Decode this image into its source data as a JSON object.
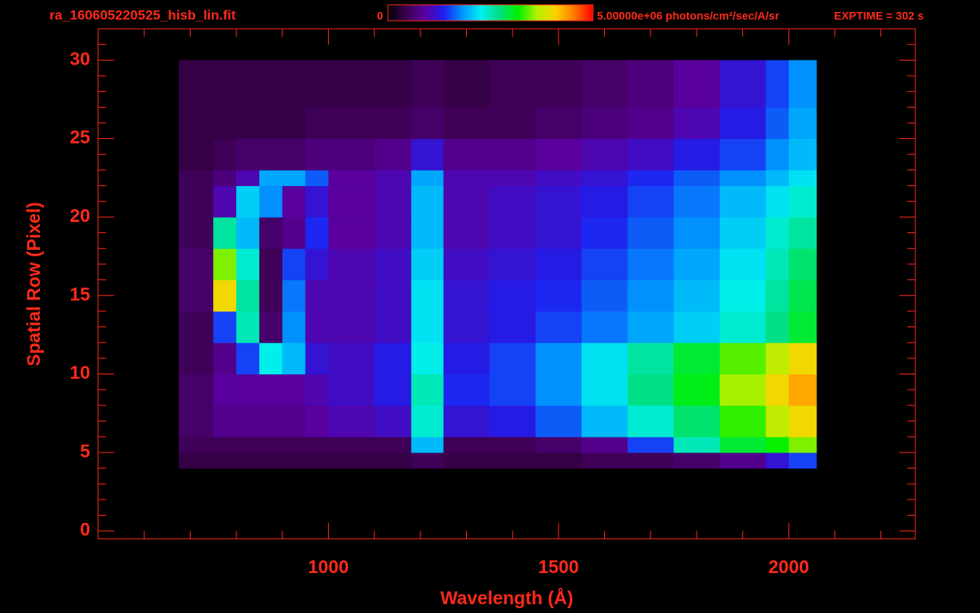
{
  "chart_data": {
    "type": "heatmap",
    "title": "ra_160605220525_hisb_lin.fit",
    "exposure": "EXPTIME = 302 s",
    "xlabel": "Wavelength (Å)",
    "ylabel": "Spatial Row (Pixel)",
    "xlim": [
      500,
      2275
    ],
    "ylim": [
      -0.5,
      32
    ],
    "xticks": [
      1000,
      1500,
      2000
    ],
    "yticks": [
      0,
      5,
      10,
      15,
      20,
      25,
      30
    ],
    "xminorticks": [
      600,
      700,
      800,
      900,
      1100,
      1200,
      1300,
      1400,
      1600,
      1700,
      1800,
      1900,
      2100,
      2200
    ],
    "yminorticks": [
      1,
      2,
      3,
      4,
      6,
      7,
      8,
      9,
      11,
      12,
      13,
      14,
      16,
      17,
      18,
      19,
      21,
      22,
      23,
      24,
      26,
      27,
      28,
      29,
      31
    ],
    "frame_color": "#ff2a1a",
    "colormap": [
      "#000000",
      "#3c0050",
      "#5a00a0",
      "#1e1ef0",
      "#0096ff",
      "#00f0f0",
      "#00e080",
      "#00f000",
      "#b4f000",
      "#ffd200",
      "#ff7800",
      "#ff0000"
    ],
    "zlim": [
      0,
      5000000
    ],
    "zticks": [
      0,
      {
        "value": 5000000,
        "label": "5.00000e+06 photons/cm²/sec/A/sr"
      }
    ],
    "x_edges": [
      675,
      750,
      800,
      850,
      900,
      950,
      1000,
      1100,
      1180,
      1250,
      1350,
      1450,
      1550,
      1650,
      1750,
      1850,
      1950,
      2000,
      2060
    ],
    "y_edges": [
      4,
      5,
      6,
      8,
      10,
      12,
      14,
      16,
      18,
      20,
      22,
      23,
      25,
      27,
      30
    ],
    "z": [
      [
        400000.0,
        400000.0,
        400000.0,
        400000.0,
        400000.0,
        400000.0,
        400000.0,
        400000.0,
        500000.0,
        400000.0,
        400000.0,
        400000.0,
        500000.0,
        500000.0,
        600000.0,
        800000.0,
        1200000.0,
        1500000.0
      ],
      [
        500000.0,
        500000.0,
        500000.0,
        500000.0,
        500000.0,
        500000.0,
        500000.0,
        500000.0,
        2000000.0,
        500000.0,
        500000.0,
        600000.0,
        800000.0,
        1500000.0,
        2500000.0,
        3000000.0,
        3200000.0,
        3500000.0
      ],
      [
        600000.0,
        800000.0,
        800000.0,
        800000.0,
        800000.0,
        900000.0,
        1000000.0,
        1100000.0,
        2400000.0,
        1200000.0,
        1300000.0,
        1600000.0,
        2000000.0,
        2400000.0,
        2800000.0,
        3300000.0,
        3700000.0,
        4000000.0
      ],
      [
        600000.0,
        900000.0,
        900000.0,
        900000.0,
        900000.0,
        1000000.0,
        1100000.0,
        1300000.0,
        2500000.0,
        1400000.0,
        1500000.0,
        1800000.0,
        2200000.0,
        2700000.0,
        3100000.0,
        3600000.0,
        4000000.0,
        4300000.0
      ],
      [
        500000.0,
        800000.0,
        1500000.0,
        2300000.0,
        2000000.0,
        1200000.0,
        1100000.0,
        1300000.0,
        2300000.0,
        1300000.0,
        1500000.0,
        1800000.0,
        2200000.0,
        2600000.0,
        3000000.0,
        3400000.0,
        3700000.0,
        4000000.0
      ],
      [
        500000.0,
        1500000.0,
        2500000.0,
        600000.0,
        1800000.0,
        1000000.0,
        1000000.0,
        1100000.0,
        2200000.0,
        1200000.0,
        1300000.0,
        1500000.0,
        1700000.0,
        1900000.0,
        2100000.0,
        2400000.0,
        2700000.0,
        3000000.0
      ],
      [
        600000.0,
        4000000.0,
        2600000.0,
        500000.0,
        1700000.0,
        1000000.0,
        1000000.0,
        1100000.0,
        2200000.0,
        1200000.0,
        1300000.0,
        1400000.0,
        1600000.0,
        1800000.0,
        2000000.0,
        2300000.0,
        2600000.0,
        2900000.0
      ],
      [
        600000.0,
        3500000.0,
        2400000.0,
        500000.0,
        1500000.0,
        1200000.0,
        1000000.0,
        1100000.0,
        2100000.0,
        1100000.0,
        1200000.0,
        1300000.0,
        1500000.0,
        1700000.0,
        1900000.0,
        2200000.0,
        2500000.0,
        2800000.0
      ],
      [
        500000.0,
        2600000.0,
        2000000.0,
        600000.0,
        800000.0,
        1400000.0,
        900000.0,
        1000000.0,
        2000000.0,
        1000000.0,
        1100000.0,
        1200000.0,
        1400000.0,
        1600000.0,
        1800000.0,
        2100000.0,
        2400000.0,
        2600000.0
      ],
      [
        500000.0,
        1000000.0,
        2100000.0,
        1800000.0,
        900000.0,
        1200000.0,
        900000.0,
        1000000.0,
        2000000.0,
        1000000.0,
        1100000.0,
        1200000.0,
        1300000.0,
        1500000.0,
        1700000.0,
        2000000.0,
        2200000.0,
        2400000.0
      ],
      [
        500000.0,
        700000.0,
        1000000.0,
        1900000.0,
        1900000.0,
        1600000.0,
        900000.0,
        1000000.0,
        1900000.0,
        1000000.0,
        1000000.0,
        1100000.0,
        1200000.0,
        1400000.0,
        1600000.0,
        1800000.0,
        2000000.0,
        2200000.0
      ],
      [
        400000.0,
        500000.0,
        600000.0,
        600000.0,
        600000.0,
        700000.0,
        700000.0,
        800000.0,
        1200000.0,
        800000.0,
        800000.0,
        900000.0,
        1000000.0,
        1100000.0,
        1300000.0,
        1500000.0,
        1800000.0,
        2000000.0
      ],
      [
        400000.0,
        400000.0,
        400000.0,
        400000.0,
        400000.0,
        500000.0,
        500000.0,
        500000.0,
        600000.0,
        500000.0,
        500000.0,
        600000.0,
        700000.0,
        800000.0,
        1000000.0,
        1300000.0,
        1600000.0,
        1900000.0
      ],
      [
        400000.0,
        400000.0,
        400000.0,
        400000.0,
        400000.0,
        400000.0,
        400000.0,
        400000.0,
        500000.0,
        400000.0,
        500000.0,
        500000.0,
        600000.0,
        700000.0,
        900000.0,
        1200000.0,
        1500000.0,
        1800000.0
      ]
    ]
  }
}
